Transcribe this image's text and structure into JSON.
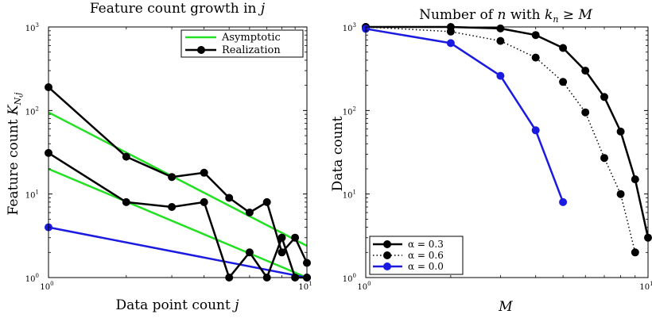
{
  "chart_data": [
    {
      "type": "line",
      "title": "Feature count growth in j",
      "xlabel": "Data point count j",
      "ylabel": "Feature count K_{N,j}",
      "xscale": "log",
      "yscale": "log",
      "xlim": [
        1,
        10
      ],
      "ylim": [
        1,
        1000
      ],
      "x_ticks": [
        "10",
        "10"
      ],
      "x_tick_exponents": [
        "0",
        "1"
      ],
      "y_ticks": [
        "10",
        "10",
        "10",
        "10"
      ],
      "y_tick_exponents": [
        "0",
        "1",
        "2",
        "3"
      ],
      "legend": {
        "placement": "top-right",
        "entries": [
          "Asymptotic",
          "Realization"
        ]
      },
      "series": [
        {
          "name": "Asymptotic",
          "color": "#22e022",
          "style": "line",
          "points": [
            [
              1,
              95
            ],
            [
              10,
              2.4
            ]
          ]
        },
        {
          "name": "Asymptotic",
          "color": "#22e022",
          "style": "line",
          "points": [
            [
              1,
              20
            ],
            [
              10,
              1
            ]
          ]
        },
        {
          "name": "Asymptotic",
          "color": "#1a1ae0",
          "style": "line",
          "marker_first": true,
          "points": [
            [
              1,
              4
            ],
            [
              10,
              1
            ]
          ]
        },
        {
          "name": "Realization",
          "color": "#000000",
          "style": "line-marker",
          "points": [
            [
              1,
              190
            ],
            [
              2,
              28
            ],
            [
              3,
              16
            ],
            [
              4,
              18
            ],
            [
              5,
              9
            ],
            [
              6,
              6
            ],
            [
              7,
              8
            ],
            [
              8,
              2
            ],
            [
              9,
              3
            ],
            [
              10,
              1.5
            ]
          ]
        },
        {
          "name": "Realization",
          "color": "#000000",
          "style": "line-marker",
          "points": [
            [
              1,
              31
            ],
            [
              2,
              8
            ],
            [
              3,
              7
            ],
            [
              4,
              8
            ],
            [
              5,
              1
            ],
            [
              6,
              2
            ],
            [
              7,
              1
            ],
            [
              8,
              3
            ],
            [
              9,
              1
            ],
            [
              10,
              1
            ]
          ]
        }
      ]
    },
    {
      "type": "line",
      "title": "Number of n with k_n ≥ M",
      "xlabel": "M",
      "ylabel": "Data count",
      "xscale": "log",
      "yscale": "log",
      "xlim": [
        1,
        10
      ],
      "ylim": [
        1,
        1000
      ],
      "x_ticks": [
        "10",
        "10"
      ],
      "x_tick_exponents": [
        "0",
        "1"
      ],
      "y_ticks": [
        "10",
        "10",
        "10",
        "10"
      ],
      "y_tick_exponents": [
        "0",
        "1",
        "2",
        "3"
      ],
      "legend": {
        "placement": "bottom-left",
        "entries": [
          "α = 0.3",
          "α = 0.6",
          "α = 0.0"
        ]
      },
      "series": [
        {
          "name": "α = 0.3",
          "color": "#000000",
          "style": "solid",
          "points": [
            [
              1,
              1000
            ],
            [
              2,
              1000
            ],
            [
              3,
              960
            ],
            [
              4,
              800
            ],
            [
              5,
              560
            ],
            [
              6,
              300
            ],
            [
              7,
              145
            ],
            [
              8,
              56
            ],
            [
              9,
              15
            ],
            [
              10,
              3
            ]
          ]
        },
        {
          "name": "α = 0.6",
          "color": "#000000",
          "style": "dotted",
          "points": [
            [
              1,
              1000
            ],
            [
              2,
              880
            ],
            [
              3,
              680
            ],
            [
              4,
              430
            ],
            [
              5,
              220
            ],
            [
              6,
              95
            ],
            [
              7,
              27
            ],
            [
              8,
              10
            ],
            [
              9,
              2
            ]
          ]
        },
        {
          "name": "α = 0.0",
          "color": "#1a1ae0",
          "style": "solid",
          "points": [
            [
              1,
              950
            ],
            [
              2,
              640
            ],
            [
              3,
              260
            ],
            [
              4,
              58
            ],
            [
              5,
              8
            ]
          ]
        }
      ]
    }
  ]
}
